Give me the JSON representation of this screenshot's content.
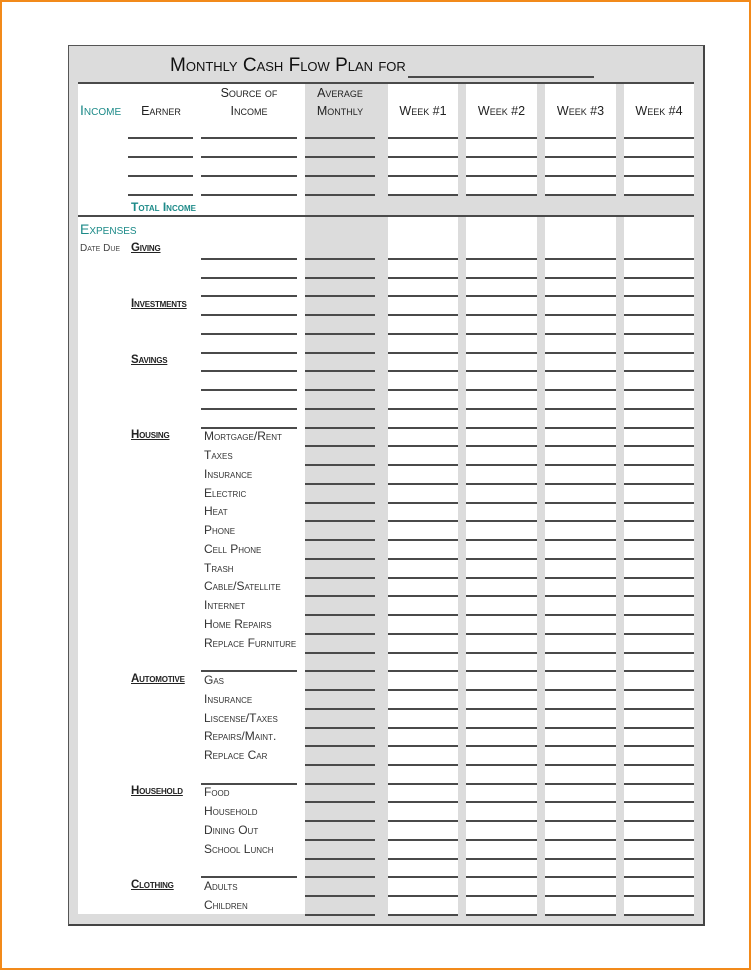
{
  "title": "Monthly Cash Flow Plan for",
  "header": {
    "income": "Income",
    "earner": "Earner",
    "source": "Source of Income",
    "source_line1": "Source of",
    "source_line2": "Income",
    "average_line1": "Average",
    "average_line2": "Monthly",
    "weeks": [
      "Week #1",
      "Week #2",
      "Week #3",
      "Week #4"
    ]
  },
  "total_income": "Total Income",
  "expenses": {
    "heading": "Expenses",
    "date_due": "Date Due",
    "rows": [
      {
        "category": "Giving",
        "item": "",
        "source_blank": true
      },
      {
        "category": "",
        "item": "",
        "source_blank": true
      },
      {
        "category": "",
        "item": "",
        "source_blank": true
      },
      {
        "category": "Investments",
        "item": "",
        "source_blank": true
      },
      {
        "category": "",
        "item": "",
        "source_blank": true
      },
      {
        "category": "",
        "item": "",
        "source_blank": true
      },
      {
        "category": "Savings",
        "item": "",
        "source_blank": true
      },
      {
        "category": "",
        "item": "",
        "source_blank": true
      },
      {
        "category": "",
        "item": "",
        "source_blank": true
      },
      {
        "category": "",
        "item": "",
        "source_blank": true
      },
      {
        "category": "Housing",
        "item": "Mortgage/Rent",
        "source_blank": false
      },
      {
        "category": "",
        "item": "Taxes",
        "source_blank": false
      },
      {
        "category": "",
        "item": "Insurance",
        "source_blank": false
      },
      {
        "category": "",
        "item": "Electric",
        "source_blank": false
      },
      {
        "category": "",
        "item": "Heat",
        "source_blank": false
      },
      {
        "category": "",
        "item": "Phone",
        "source_blank": false
      },
      {
        "category": "",
        "item": "Cell Phone",
        "source_blank": false
      },
      {
        "category": "",
        "item": "Trash",
        "source_blank": false
      },
      {
        "category": "",
        "item": "Cable/Satellite",
        "source_blank": false
      },
      {
        "category": "",
        "item": "Internet",
        "source_blank": false
      },
      {
        "category": "",
        "item": "Home Repairs",
        "source_blank": false
      },
      {
        "category": "",
        "item": "Replace Furniture",
        "source_blank": false
      },
      {
        "category": "",
        "item": "",
        "source_blank": true
      },
      {
        "category": "Automotive",
        "item": "Gas",
        "source_blank": false
      },
      {
        "category": "",
        "item": "Insurance",
        "source_blank": false
      },
      {
        "category": "",
        "item": "Liscense/Taxes",
        "source_blank": false
      },
      {
        "category": "",
        "item": "Repairs/Maint.",
        "source_blank": false
      },
      {
        "category": "",
        "item": "Replace Car",
        "source_blank": false
      },
      {
        "category": "",
        "item": "",
        "source_blank": true
      },
      {
        "category": "Household",
        "item": "Food",
        "source_blank": false
      },
      {
        "category": "",
        "item": "Household",
        "source_blank": false
      },
      {
        "category": "",
        "item": "Dining Out",
        "source_blank": false
      },
      {
        "category": "",
        "item": "School Lunch",
        "source_blank": false
      },
      {
        "category": "",
        "item": "",
        "source_blank": true
      },
      {
        "category": "Clothing",
        "item": "Adults",
        "source_blank": false
      },
      {
        "category": "",
        "item": "Children",
        "source_blank": false
      }
    ]
  },
  "income_rows": 4,
  "colors": {
    "accent": "#1c8a88",
    "border": "#f28a1a",
    "shade": "#dcdcdc"
  }
}
